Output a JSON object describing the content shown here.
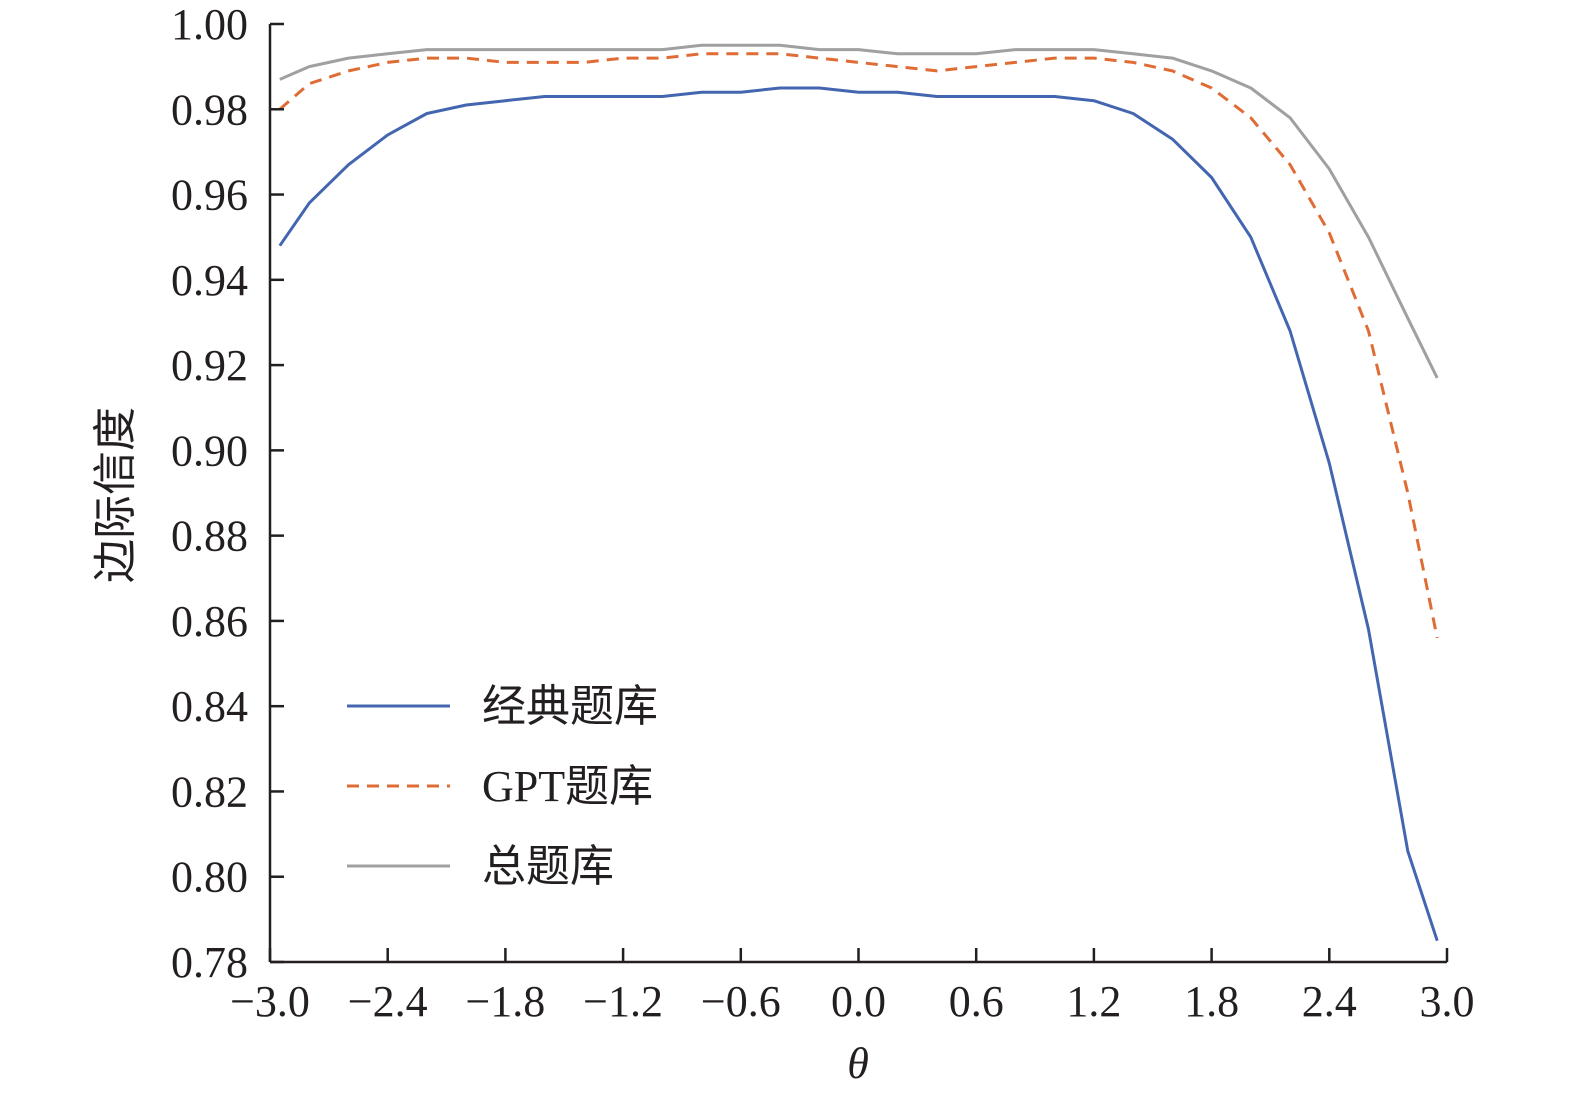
{
  "chart_data": {
    "type": "line",
    "title": "",
    "xlabel": "θ",
    "ylabel": "边际信度",
    "xlim": [
      -3.0,
      3.0
    ],
    "ylim": [
      0.78,
      1.0
    ],
    "x_ticks": [
      "−3.0",
      "−2.4",
      "−1.8",
      "−1.2",
      "−0.6",
      "0.0",
      "0.6",
      "1.2",
      "1.8",
      "2.4",
      "3.0"
    ],
    "y_ticks": [
      "0.78",
      "0.80",
      "0.82",
      "0.84",
      "0.86",
      "0.88",
      "0.90",
      "0.92",
      "0.94",
      "0.96",
      "0.98",
      "1.00"
    ],
    "grid": false,
    "legend_position": "lower-left",
    "series": [
      {
        "name": "经典题库",
        "color": "#4466b0",
        "style": "solid",
        "x": [
          -2.95,
          -2.8,
          -2.6,
          -2.4,
          -2.2,
          -2.0,
          -1.8,
          -1.6,
          -1.4,
          -1.2,
          -1.0,
          -0.8,
          -0.6,
          -0.4,
          -0.2,
          0.0,
          0.2,
          0.4,
          0.6,
          0.8,
          1.0,
          1.2,
          1.4,
          1.6,
          1.8,
          2.0,
          2.2,
          2.4,
          2.6,
          2.8,
          2.95
        ],
        "y": [
          0.948,
          0.958,
          0.967,
          0.974,
          0.979,
          0.981,
          0.982,
          0.983,
          0.983,
          0.983,
          0.983,
          0.984,
          0.984,
          0.985,
          0.985,
          0.984,
          0.984,
          0.983,
          0.983,
          0.983,
          0.983,
          0.982,
          0.979,
          0.973,
          0.964,
          0.95,
          0.928,
          0.897,
          0.858,
          0.806,
          0.785
        ]
      },
      {
        "name": "GPT题库",
        "color": "#e06c35",
        "style": "dashed",
        "x": [
          -2.95,
          -2.8,
          -2.6,
          -2.4,
          -2.2,
          -2.0,
          -1.8,
          -1.6,
          -1.4,
          -1.2,
          -1.0,
          -0.8,
          -0.6,
          -0.4,
          -0.2,
          0.0,
          0.2,
          0.4,
          0.6,
          0.8,
          1.0,
          1.2,
          1.4,
          1.6,
          1.8,
          2.0,
          2.2,
          2.4,
          2.6,
          2.8,
          2.95
        ],
        "y": [
          0.98,
          0.986,
          0.989,
          0.991,
          0.992,
          0.992,
          0.991,
          0.991,
          0.991,
          0.992,
          0.992,
          0.993,
          0.993,
          0.993,
          0.992,
          0.991,
          0.99,
          0.989,
          0.99,
          0.991,
          0.992,
          0.992,
          0.991,
          0.989,
          0.985,
          0.978,
          0.967,
          0.951,
          0.928,
          0.89,
          0.856
        ]
      },
      {
        "name": "总题库",
        "color": "#a0a0a0",
        "style": "solid",
        "x": [
          -2.95,
          -2.8,
          -2.6,
          -2.4,
          -2.2,
          -2.0,
          -1.8,
          -1.6,
          -1.4,
          -1.2,
          -1.0,
          -0.8,
          -0.6,
          -0.4,
          -0.2,
          0.0,
          0.2,
          0.4,
          0.6,
          0.8,
          1.0,
          1.2,
          1.4,
          1.6,
          1.8,
          2.0,
          2.2,
          2.4,
          2.6,
          2.8,
          2.95
        ],
        "y": [
          0.987,
          0.99,
          0.992,
          0.993,
          0.994,
          0.994,
          0.994,
          0.994,
          0.994,
          0.994,
          0.994,
          0.995,
          0.995,
          0.995,
          0.994,
          0.994,
          0.993,
          0.993,
          0.993,
          0.994,
          0.994,
          0.994,
          0.993,
          0.992,
          0.989,
          0.985,
          0.978,
          0.966,
          0.95,
          0.931,
          0.917
        ]
      }
    ]
  }
}
